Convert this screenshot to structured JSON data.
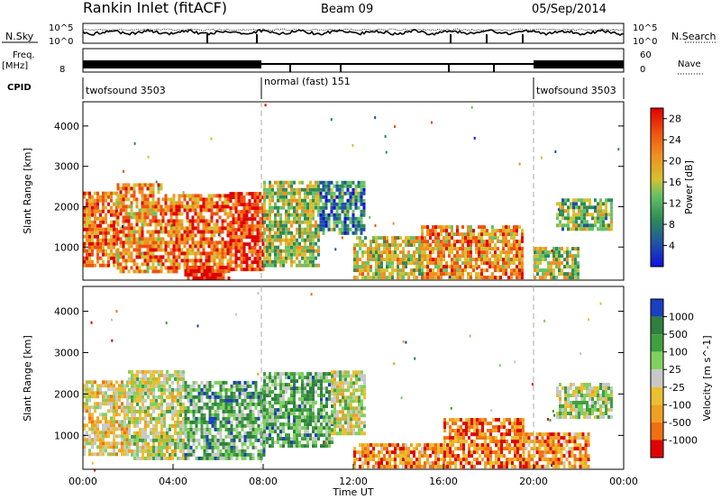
{
  "header": {
    "station": "Rankin Inlet (fitACF)",
    "beam": "Beam 09",
    "date": "05/Sep/2014"
  },
  "strip": {
    "nsky_label": "N.Sky",
    "nsky_ticks": [
      "10^5",
      "10^0"
    ],
    "nsearch_label": "N.Search",
    "nsearch_ticks": [
      "10^5",
      "10^0"
    ],
    "freq_label": "Freq.",
    "freq_unit": "[MHz]",
    "freq_ticks": [
      "8"
    ],
    "nave_label": "Nave",
    "nave_ticks": [
      "60",
      "0"
    ],
    "cpid_label": "CPID",
    "cpid_segments": [
      {
        "label": "twofsound 3503",
        "start": 0,
        "end": 8
      },
      {
        "label": "normal (fast) 151",
        "start": 8,
        "end": 20
      },
      {
        "label": "twofsound 3503",
        "start": 20,
        "end": 24
      }
    ]
  },
  "chart_data": [
    {
      "type": "heatmap",
      "panel": "power",
      "ylabel": "Slant Range [km]",
      "yticks": [
        "1000",
        "2000",
        "3000",
        "4000"
      ],
      "ylim": [
        180,
        4600
      ],
      "xlim": [
        0,
        24
      ],
      "colorbar_label": "Power [dB]",
      "colorbar_ticks": [
        "4",
        "8",
        "12",
        "16",
        "20",
        "24",
        "28"
      ],
      "colorbar_range": [
        0,
        30
      ],
      "colors": [
        "#1010e0",
        "#2050a8",
        "#2e8b57",
        "#66c266",
        "#d6c030",
        "#f09020",
        "#f05010",
        "#e00000"
      ],
      "regions": [
        {
          "x": [
            0.0,
            1.5
          ],
          "y": [
            500,
            2300
          ],
          "level": 0.75
        },
        {
          "x": [
            1.5,
            3.5
          ],
          "y": [
            350,
            2500
          ],
          "level": 0.7
        },
        {
          "x": [
            3.5,
            6.5
          ],
          "y": [
            350,
            2300
          ],
          "level": 0.75
        },
        {
          "x": [
            6.5,
            8.0
          ],
          "y": [
            400,
            2300
          ],
          "level": 0.85
        },
        {
          "x": [
            4.5,
            6.5
          ],
          "y": [
            180,
            500
          ],
          "level": 0.95
        },
        {
          "x": [
            8.0,
            10.5
          ],
          "y": [
            500,
            2600
          ],
          "level": 0.5
        },
        {
          "x": [
            10.5,
            12.5
          ],
          "y": [
            1300,
            2600
          ],
          "level": 0.3
        },
        {
          "x": [
            12.0,
            15.0
          ],
          "y": [
            200,
            1200
          ],
          "level": 0.55
        },
        {
          "x": [
            15.0,
            19.5
          ],
          "y": [
            200,
            1500
          ],
          "level": 0.7
        },
        {
          "x": [
            20.0,
            22.0
          ],
          "y": [
            200,
            1000
          ],
          "level": 0.5
        },
        {
          "x": [
            21.0,
            23.5
          ],
          "y": [
            1400,
            2200
          ],
          "level": 0.45
        }
      ]
    },
    {
      "type": "heatmap",
      "panel": "velocity",
      "ylabel": "Slant Range [km]",
      "yticks": [
        "1000",
        "2000",
        "3000",
        "4000"
      ],
      "ylim": [
        180,
        4600
      ],
      "xlim": [
        0,
        24
      ],
      "xlabel": "Time UT",
      "xticks": [
        "00:00",
        "04:00",
        "08:00",
        "12:00",
        "16:00",
        "20:00",
        "00:00"
      ],
      "colorbar_label": "Velocity [m s^-1]",
      "colorbar_ticks": [
        "1000",
        "500",
        "100",
        "25",
        "-25",
        "-100",
        "-500",
        "-1000"
      ],
      "colors": [
        "#1a3fbf",
        "#2f7f3f",
        "#3fa040",
        "#80d060",
        "#c8c8c8",
        "#e8c030",
        "#f0a020",
        "#f07010",
        "#e00000"
      ],
      "regions": [
        {
          "x": [
            0.0,
            2.0
          ],
          "y": [
            500,
            2300
          ],
          "level": 0.6
        },
        {
          "x": [
            2.0,
            4.5
          ],
          "y": [
            400,
            2500
          ],
          "level": 0.5
        },
        {
          "x": [
            4.5,
            8.0
          ],
          "y": [
            400,
            2300
          ],
          "level": 0.3
        },
        {
          "x": [
            8.0,
            11.0
          ],
          "y": [
            700,
            2500
          ],
          "level": 0.3
        },
        {
          "x": [
            11.0,
            12.5
          ],
          "y": [
            1000,
            2500
          ],
          "level": 0.5
        },
        {
          "x": [
            12.0,
            16.0
          ],
          "y": [
            200,
            800
          ],
          "level": 0.75
        },
        {
          "x": [
            16.0,
            19.5
          ],
          "y": [
            200,
            1400
          ],
          "level": 0.8
        },
        {
          "x": [
            19.5,
            22.5
          ],
          "y": [
            200,
            1000
          ],
          "level": 0.75
        },
        {
          "x": [
            21.0,
            23.5
          ],
          "y": [
            1400,
            2200
          ],
          "level": 0.45
        }
      ]
    }
  ]
}
